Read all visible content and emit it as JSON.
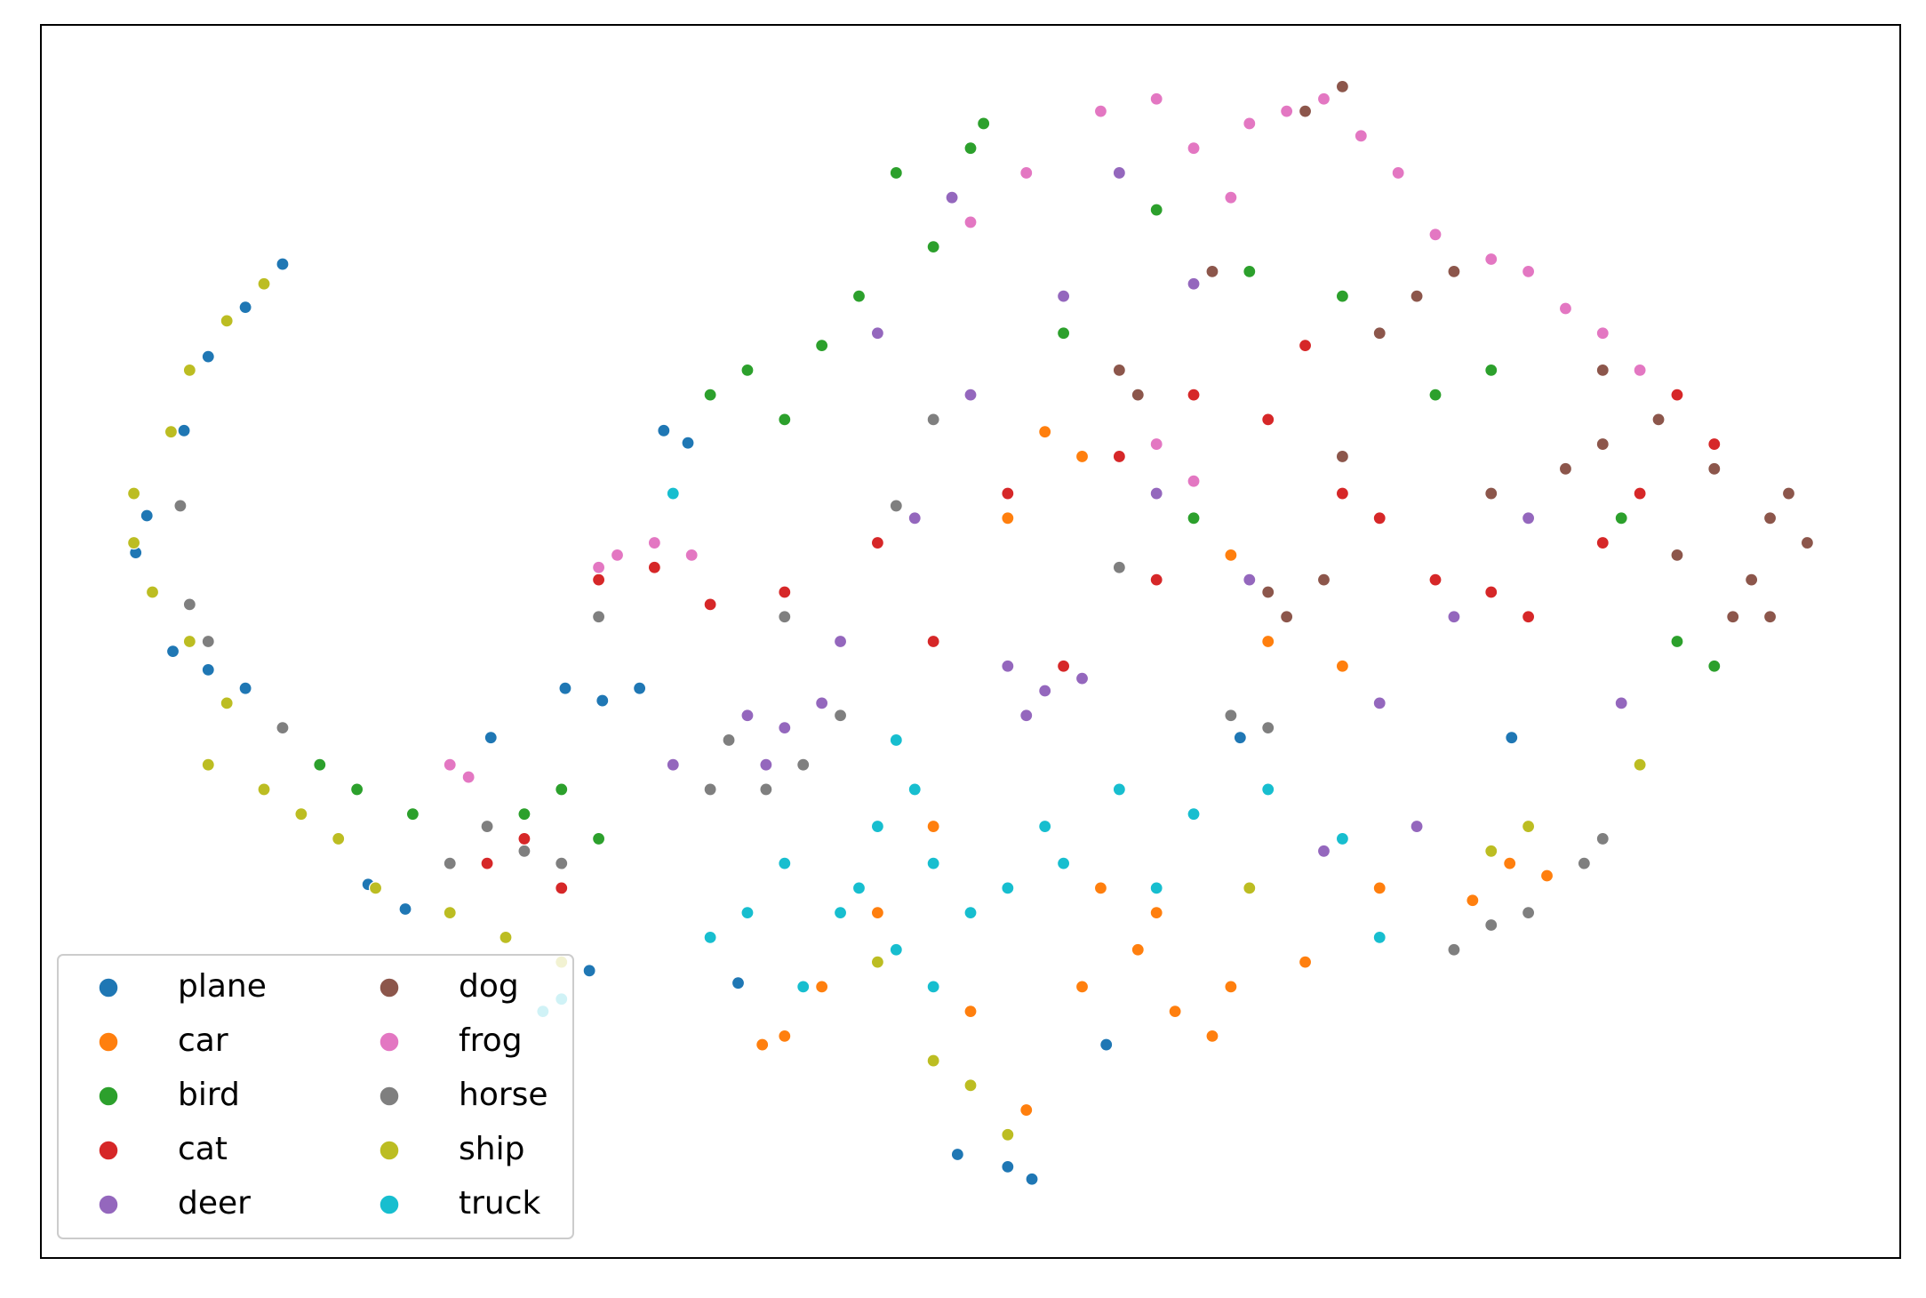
{
  "chart_data": {
    "type": "scatter",
    "xlim": [
      0,
      100
    ],
    "ylim": [
      0,
      100
    ],
    "legend": "lower left",
    "legend_columns": 2,
    "series": [
      {
        "name": "plane",
        "color": "#1f77b4",
        "x": [
          13.0,
          11.0,
          9.0,
          7.7,
          5.7,
          5.1,
          7.1,
          9.0,
          11.0,
          17.6,
          19.6,
          28.2,
          30.2,
          32.2,
          24.2,
          52.0,
          53.3,
          49.3,
          37.5,
          79.1,
          57.3,
          34.8,
          33.5,
          64.5,
          29.5
        ],
        "y": [
          80.6,
          77.1,
          73.1,
          67.1,
          60.2,
          57.2,
          49.2,
          47.7,
          46.2,
          30.3,
          28.3,
          46.2,
          45.2,
          46.2,
          42.2,
          7.4,
          6.4,
          8.4,
          22.3,
          42.2,
          17.3,
          66.1,
          67.1,
          42.2,
          23.3
        ]
      },
      {
        "name": "car",
        "color": "#ff7f0e",
        "x": [
          57,
          59,
          61,
          63,
          60,
          64,
          56,
          38.8,
          40,
          42,
          79,
          81,
          77,
          54,
          56,
          52,
          64,
          66,
          70,
          48,
          45,
          53,
          50,
          72,
          68
        ],
        "y": [
          30,
          25,
          20,
          18,
          28,
          22,
          22,
          17.3,
          18,
          22,
          32,
          31,
          29,
          67,
          65,
          60,
          57,
          50,
          48,
          35,
          28,
          12,
          20,
          30,
          24
        ]
      },
      {
        "name": "bird",
        "color": "#2ca02c",
        "x": [
          50.7,
          50,
          46,
          36,
          38,
          40,
          42,
          44,
          15,
          17,
          20,
          26,
          28,
          60,
          65,
          70,
          75,
          78,
          85,
          88,
          90,
          55,
          48,
          30,
          62
        ],
        "y": [
          92,
          90,
          88,
          70,
          72,
          68,
          74,
          78,
          40,
          38,
          36,
          36,
          38,
          85,
          80,
          78,
          70,
          72,
          60,
          50,
          48,
          75,
          82,
          34,
          60
        ]
      },
      {
        "name": "cat",
        "color": "#d62728",
        "x": [
          30,
          33,
          36,
          40,
          45,
          48,
          52,
          58,
          62,
          66,
          72,
          75,
          78,
          80,
          84,
          86,
          88,
          24,
          26,
          28,
          55,
          60,
          68,
          70,
          90
        ],
        "y": [
          55,
          56,
          53,
          54,
          58,
          50,
          62,
          65,
          70,
          68,
          60,
          55,
          54,
          52,
          58,
          62,
          70,
          32,
          34,
          30,
          48,
          55,
          74,
          62,
          66
        ]
      },
      {
        "name": "deer",
        "color": "#9467bd",
        "x": [
          52,
          54,
          56,
          53,
          38,
          40,
          42,
          39,
          34,
          47,
          50,
          55,
          45,
          60,
          65,
          72,
          76,
          80,
          85,
          69,
          74,
          58,
          49,
          62,
          43
        ],
        "y": [
          48,
          46,
          47,
          44,
          44,
          43,
          45,
          40,
          40,
          60,
          70,
          78,
          75,
          62,
          55,
          45,
          52,
          60,
          45,
          33,
          35,
          88,
          86,
          79,
          50
        ]
      },
      {
        "name": "dog",
        "color": "#8c564b",
        "x": [
          93,
          94,
          95,
          92,
          90,
          88,
          91,
          87,
          82,
          78,
          66,
          67,
          69,
          70,
          72,
          74,
          76,
          68,
          70,
          59,
          63,
          58,
          84,
          93,
          84
        ],
        "y": [
          60,
          62,
          58,
          55,
          64,
          57,
          52,
          68,
          64,
          62,
          54,
          52,
          55,
          65,
          75,
          78,
          80,
          93,
          95,
          70,
          80,
          72,
          72,
          52,
          66
        ]
      },
      {
        "name": "frog",
        "color": "#e377c2",
        "x": [
          65,
          67,
          69,
          71,
          73,
          62,
          64,
          57,
          60,
          80,
          82,
          84,
          78,
          86,
          30,
          31,
          33,
          35,
          22,
          23,
          50,
          53,
          62,
          60,
          75
        ],
        "y": [
          92,
          93,
          94,
          91,
          88,
          90,
          86,
          93,
          94,
          80,
          77,
          75,
          81,
          72,
          56,
          57,
          58,
          57,
          40,
          39,
          84,
          88,
          63,
          66,
          83
        ]
      },
      {
        "name": "horse",
        "color": "#7f7f7f",
        "x": [
          37,
          39,
          41,
          36,
          43,
          24,
          26,
          28,
          22,
          7.5,
          8,
          9,
          13,
          78,
          80,
          83,
          84,
          76,
          46,
          64,
          66,
          48,
          58,
          40,
          30
        ],
        "y": [
          42,
          38,
          40,
          38,
          44,
          35,
          33,
          32,
          32,
          61,
          53,
          50,
          43,
          27,
          28,
          32,
          34,
          25,
          61,
          44,
          43,
          68,
          56,
          52,
          52
        ]
      },
      {
        "name": "ship",
        "color": "#bcbd22",
        "x": [
          12,
          10,
          8,
          7,
          5,
          5,
          6,
          8,
          10,
          9,
          12,
          14,
          16,
          18,
          22,
          25,
          28,
          50,
          52,
          48,
          78,
          80,
          65,
          45,
          86
        ],
        "y": [
          79,
          76,
          72,
          67,
          62,
          58,
          54,
          50,
          45,
          40,
          38,
          36,
          34,
          30,
          28,
          26,
          24,
          14,
          10,
          16,
          33,
          35,
          30,
          24,
          40
        ]
      },
      {
        "name": "truck",
        "color": "#17becf",
        "x": [
          46,
          47,
          45,
          48,
          44,
          43,
          46,
          48,
          50,
          52,
          54,
          55,
          40,
          38,
          36,
          41,
          58,
          62,
          66,
          70,
          60,
          27,
          28,
          72,
          34
        ],
        "y": [
          42,
          38,
          35,
          32,
          30,
          28,
          25,
          22,
          28,
          30,
          35,
          32,
          32,
          28,
          26,
          22,
          38,
          36,
          38,
          34,
          30,
          20,
          21,
          26,
          62
        ]
      }
    ]
  }
}
